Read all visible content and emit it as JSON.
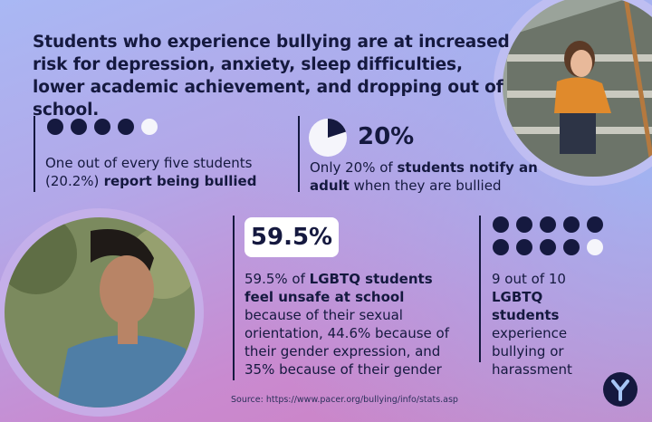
{
  "headline": "Students who experience bullying are at increased risk for depression, anxiety, sleep difficulties, lower academic achievement, and dropping out of school.",
  "stats": [
    {
      "text": [
        "One out of every five students (20.2%)",
        " report being bullied"
      ]
    },
    {
      "figure": "20%",
      "text": [
        "Only 20% of ",
        "students notify an adult",
        " when they are bullied"
      ]
    },
    {
      "figure": "59.5%",
      "text": [
        "59.5% of ",
        "LGBTQ students feel unsafe at school",
        " because of their sexual orientation, 44.6% because of their gender expression, and 35% because of their gender"
      ]
    },
    {
      "text": [
        "9 out of 10 ",
        "LGBTQ students",
        " experience bullying or harassment"
      ]
    }
  ],
  "source": "Source: https://www.pacer.org/bullying/info/stats.asp"
}
